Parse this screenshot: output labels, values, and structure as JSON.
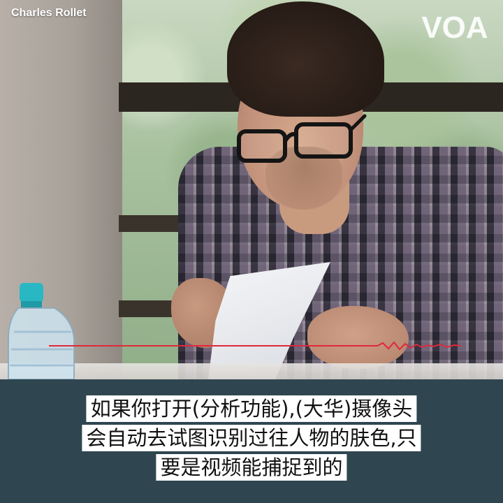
{
  "watermark": {
    "photographer": "Charles Rollet"
  },
  "logo": {
    "name": "voa-logo",
    "text": "VOA",
    "color": "#ffffff"
  },
  "caption": {
    "lines": [
      "如果你打开(分析功能),(大华)摄像头",
      "会自动去试图识别过往人物的肤色,只",
      "要是视频能捕捉到的"
    ],
    "background": "#2f4650",
    "highlight_color": "#ffffff",
    "text_color": "#111111"
  },
  "soundwave": {
    "color": "#e0283a"
  }
}
